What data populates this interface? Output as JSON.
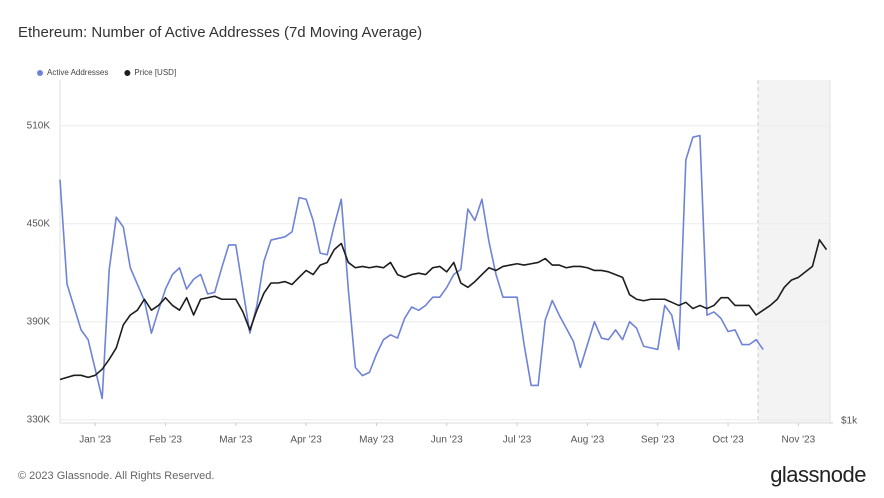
{
  "chart_data": {
    "type": "line",
    "title": "Ethereum: Number of Active Addresses (7d Moving Average)",
    "legend": "top-left",
    "grid": true,
    "x": [
      0.5,
      0.6,
      0.7,
      0.8,
      0.9,
      1.0,
      1.1,
      1.2,
      1.3,
      1.4,
      1.5,
      1.6,
      1.7,
      1.8,
      1.9,
      2.0,
      2.1,
      2.2,
      2.3,
      2.4,
      2.5,
      2.6,
      2.7,
      2.8,
      2.9,
      3.0,
      3.1,
      3.2,
      3.3,
      3.4,
      3.5,
      3.6,
      3.7,
      3.8,
      3.9,
      4.0,
      4.1,
      4.2,
      4.3,
      4.4,
      4.5,
      4.6,
      4.7,
      4.8,
      4.9,
      5.0,
      5.1,
      5.2,
      5.3,
      5.4,
      5.5,
      5.6,
      5.7,
      5.8,
      5.9,
      6.0,
      6.1,
      6.2,
      6.3,
      6.4,
      6.5,
      6.6,
      6.7,
      6.8,
      6.9,
      7.0,
      7.1,
      7.2,
      7.3,
      7.4,
      7.5,
      7.6,
      7.7,
      7.8,
      7.9,
      8.0,
      8.1,
      8.2,
      8.3,
      8.4,
      8.5,
      8.6,
      8.7,
      8.8,
      8.9,
      9.0,
      9.1,
      9.2,
      9.3,
      9.4,
      9.5,
      9.6,
      9.7,
      9.8,
      9.9,
      10.0,
      10.1,
      10.2,
      10.3,
      10.4,
      10.5,
      10.6,
      10.7,
      10.8,
      10.9,
      11.0,
      11.1,
      11.2,
      11.3,
      11.4
    ],
    "xlim": [
      0.5,
      11.45
    ],
    "xticks": [
      {
        "value": 1,
        "label": "Jan '23"
      },
      {
        "value": 2,
        "label": "Feb '23"
      },
      {
        "value": 3,
        "label": "Mar '23"
      },
      {
        "value": 4,
        "label": "Apr '23"
      },
      {
        "value": 5,
        "label": "May '23"
      },
      {
        "value": 6,
        "label": "Jun '23"
      },
      {
        "value": 7,
        "label": "Jul '23"
      },
      {
        "value": 8,
        "label": "Aug '23"
      },
      {
        "value": 9,
        "label": "Sep '23"
      },
      {
        "value": 10,
        "label": "Oct '23"
      },
      {
        "value": 11,
        "label": "Nov '23"
      }
    ],
    "ylim": [
      328000,
      538000
    ],
    "yticks": [
      {
        "value": 330000,
        "label": "330K"
      },
      {
        "value": 390000,
        "label": "390K"
      },
      {
        "value": 450000,
        "label": "450K"
      },
      {
        "value": 510000,
        "label": "510K"
      }
    ],
    "y2lim": [
      1000,
      3940
    ],
    "y2log": true,
    "y2ticks": [
      {
        "value": 1000,
        "label": "$1k"
      }
    ],
    "series": [
      {
        "name": "Active Addresses",
        "color": "#6f83d9",
        "values": [
          477000,
          413000,
          399000,
          385000,
          379000,
          361000,
          343000,
          422000,
          454000,
          448000,
          423000,
          413000,
          403000,
          383000,
          397000,
          410000,
          419000,
          423000,
          410000,
          416000,
          419000,
          407000,
          408000,
          423000,
          437000,
          437000,
          410000,
          383000,
          400000,
          427000,
          440000,
          441000,
          442000,
          445000,
          466000,
          465000,
          452000,
          432000,
          431000,
          449000,
          465000,
          410000,
          362000,
          357000,
          359000,
          370000,
          379000,
          382000,
          380000,
          392000,
          399000,
          397000,
          400000,
          405000,
          405000,
          411000,
          419000,
          422000,
          459000,
          452000,
          465000,
          439000,
          419000,
          405000,
          405000,
          405000,
          376000,
          351000,
          351000,
          391000,
          403000,
          394000,
          386000,
          378000,
          362000,
          376000,
          390000,
          380000,
          379000,
          385000,
          379000,
          390000,
          386000,
          375000,
          374000,
          373000,
          400000,
          394000,
          373000,
          489000,
          503000,
          504000,
          394000,
          396000,
          392000,
          384000,
          385000,
          376000,
          376000,
          379000,
          373000,
          null,
          null,
          null,
          null,
          null,
          null,
          null,
          null,
          null
        ]
      },
      {
        "name": "Price [USD]",
        "color": "#1d1d1d",
        "axis": "y2",
        "values": [
          1190,
          1200,
          1210,
          1210,
          1200,
          1210,
          1240,
          1290,
          1350,
          1480,
          1540,
          1570,
          1640,
          1570,
          1600,
          1650,
          1600,
          1570,
          1650,
          1540,
          1640,
          1650,
          1660,
          1640,
          1640,
          1640,
          1560,
          1450,
          1570,
          1680,
          1750,
          1750,
          1760,
          1740,
          1790,
          1840,
          1810,
          1880,
          1900,
          2000,
          2050,
          1900,
          1860,
          1870,
          1860,
          1870,
          1860,
          1900,
          1810,
          1790,
          1810,
          1820,
          1810,
          1860,
          1870,
          1830,
          1900,
          1750,
          1720,
          1760,
          1810,
          1860,
          1840,
          1870,
          1880,
          1890,
          1880,
          1890,
          1900,
          1930,
          1880,
          1880,
          1860,
          1870,
          1870,
          1860,
          1840,
          1840,
          1830,
          1810,
          1790,
          1670,
          1640,
          1630,
          1640,
          1640,
          1640,
          1620,
          1600,
          1620,
          1580,
          1600,
          1580,
          1600,
          1650,
          1650,
          1600,
          1600,
          1600,
          1540,
          1570,
          1600,
          1640,
          1720,
          1770,
          1790,
          1830,
          1870,
          2080,
          2000
        ]
      }
    ]
  },
  "footer": {
    "copyright": "© 2023 Glassnode. All Rights Reserved.",
    "brand": "glassnode"
  }
}
